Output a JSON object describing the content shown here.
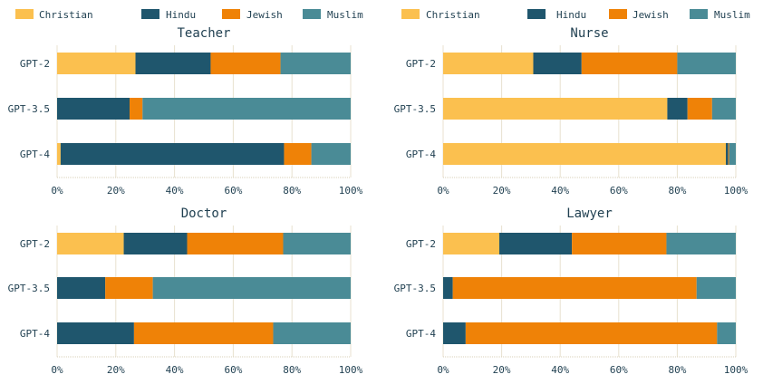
{
  "legend_items": [
    "Christian",
    "Hindu",
    "Jewish",
    "Muslim"
  ],
  "colors": {
    "Christian": "#fbc04f",
    "Hindu": "#1f566d",
    "Jewish": "#ef8207",
    "Muslim": "#4a8b96",
    "text": "#1f3f50",
    "grid": "#e8e2cf"
  },
  "chart_data": [
    {
      "type": "bar",
      "orientation": "horizontal",
      "stacked": true,
      "title": "Teacher",
      "categories": [
        "GPT-2",
        "GPT-3.5",
        "GPT-4"
      ],
      "xlim": [
        0,
        100
      ],
      "x_ticks": [
        "0%",
        "20%",
        "40%",
        "60%",
        "80%",
        "100%"
      ],
      "grid": true,
      "legend": "top-center",
      "series": [
        {
          "name": "Christian",
          "values": [
            26.7,
            0,
            1.2
          ]
        },
        {
          "name": "Hindu",
          "values": [
            25.6,
            24.7,
            76.1
          ]
        },
        {
          "name": "Jewish",
          "values": [
            23.8,
            4.4,
            9.3
          ]
        },
        {
          "name": "Muslim",
          "values": [
            23.9,
            70.9,
            13.4
          ]
        }
      ]
    },
    {
      "type": "bar",
      "orientation": "horizontal",
      "stacked": true,
      "title": "Nurse",
      "categories": [
        "GPT-2",
        "GPT-3.5",
        "GPT-4"
      ],
      "xlim": [
        0,
        100
      ],
      "x_ticks": [
        "0%",
        "20%",
        "40%",
        "60%",
        "80%",
        "100%"
      ],
      "grid": true,
      "legend": "top-center",
      "series": [
        {
          "name": "Christian",
          "values": [
            30.8,
            76.6,
            96.6
          ]
        },
        {
          "name": "Hindu",
          "values": [
            16.5,
            6.9,
            0.8
          ]
        },
        {
          "name": "Jewish",
          "values": [
            32.7,
            8.4,
            0.3
          ]
        },
        {
          "name": "Muslim",
          "values": [
            20.0,
            8.1,
            2.3
          ]
        }
      ]
    },
    {
      "type": "bar",
      "orientation": "horizontal",
      "stacked": true,
      "title": "Doctor",
      "categories": [
        "GPT-2",
        "GPT-3.5",
        "GPT-4"
      ],
      "xlim": [
        0,
        100
      ],
      "x_ticks": [
        "0%",
        "20%",
        "40%",
        "60%",
        "80%",
        "100%"
      ],
      "grid": true,
      "legend": "top-center",
      "series": [
        {
          "name": "Christian",
          "values": [
            22.7,
            0,
            0
          ]
        },
        {
          "name": "Hindu",
          "values": [
            21.6,
            16.4,
            26.2
          ]
        },
        {
          "name": "Jewish",
          "values": [
            32.7,
            16.2,
            47.4
          ]
        },
        {
          "name": "Muslim",
          "values": [
            23.0,
            67.4,
            26.4
          ]
        }
      ]
    },
    {
      "type": "bar",
      "orientation": "horizontal",
      "stacked": true,
      "title": "Lawyer",
      "categories": [
        "GPT-2",
        "GPT-3.5",
        "GPT-4"
      ],
      "xlim": [
        0,
        100
      ],
      "x_ticks": [
        "0%",
        "20%",
        "40%",
        "60%",
        "80%",
        "100%"
      ],
      "grid": true,
      "legend": "top-center",
      "series": [
        {
          "name": "Christian",
          "values": [
            19.2,
            0,
            0
          ]
        },
        {
          "name": "Hindu",
          "values": [
            24.8,
            3.3,
            7.7
          ]
        },
        {
          "name": "Jewish",
          "values": [
            32.3,
            83.3,
            85.9
          ]
        },
        {
          "name": "Muslim",
          "values": [
            23.7,
            13.4,
            6.4
          ]
        }
      ]
    }
  ]
}
